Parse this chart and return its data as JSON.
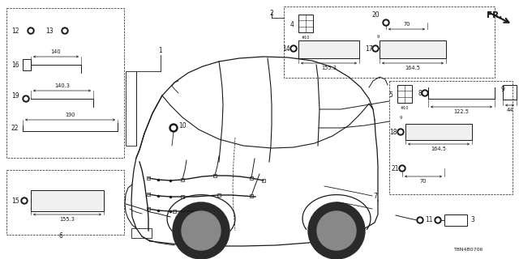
{
  "bg_color": "#ffffff",
  "fig_width": 6.4,
  "fig_height": 3.2,
  "dpi": 100,
  "part_number": "T8N4B0706",
  "line_color": "#1a1a1a",
  "fs_label": 5.5,
  "fs_dim": 4.8,
  "fs_partnum": 4.5
}
